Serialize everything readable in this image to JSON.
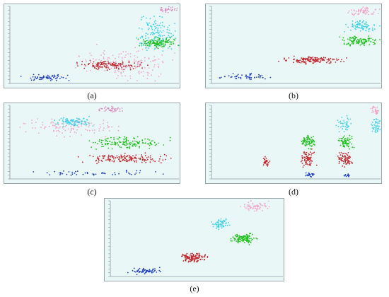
{
  "captions": {
    "a": "(a)",
    "b": "(b)",
    "c": "(c)",
    "d": "(d)",
    "e": "(e)"
  },
  "colors": {
    "background": "#e9f7f7",
    "axis": "#8a99a3",
    "blue": "#1f3fbf",
    "red": "#c0262c",
    "green": "#22c21f",
    "cyan": "#3fd2e8",
    "pink": "#f2a4c8",
    "plum": "#d98cc0"
  },
  "chart_data": [
    {
      "id": "a",
      "type": "scatter",
      "grid": false,
      "xlim": [
        0,
        1
      ],
      "ylim": [
        0,
        1
      ],
      "clusters": [
        {
          "color": "blue",
          "x": [
            0.02,
            0.4
          ],
          "y": [
            0.03,
            0.12
          ],
          "n": 60
        },
        {
          "color": "red",
          "x": [
            0.38,
            0.8
          ],
          "y": [
            0.18,
            0.3
          ],
          "n": 150
        },
        {
          "color": "pink",
          "x": [
            0.4,
            0.98
          ],
          "y": [
            0.0,
            0.5
          ],
          "n": 160
        },
        {
          "color": "cyan",
          "x": [
            0.72,
            1.0
          ],
          "y": [
            0.35,
            0.9
          ],
          "n": 140
        },
        {
          "color": "green",
          "x": [
            0.76,
            1.0
          ],
          "y": [
            0.45,
            0.6
          ],
          "n": 120
        },
        {
          "color": "plum",
          "x": [
            0.88,
            1.0
          ],
          "y": [
            0.92,
            1.0
          ],
          "n": 30
        }
      ]
    },
    {
      "id": "b",
      "type": "scatter",
      "grid": false,
      "xlim": [
        0,
        1
      ],
      "ylim": [
        0,
        1
      ],
      "clusters": [
        {
          "color": "blue",
          "x": [
            0.03,
            0.35
          ],
          "y": [
            0.04,
            0.14
          ],
          "n": 50
        },
        {
          "color": "red",
          "x": [
            0.4,
            0.8
          ],
          "y": [
            0.25,
            0.36
          ],
          "n": 140
        },
        {
          "color": "green",
          "x": [
            0.76,
            1.0
          ],
          "y": [
            0.48,
            0.62
          ],
          "n": 110
        },
        {
          "color": "cyan",
          "x": [
            0.78,
            1.0
          ],
          "y": [
            0.66,
            0.82
          ],
          "n": 80
        },
        {
          "color": "pink",
          "x": [
            0.8,
            1.0
          ],
          "y": [
            0.88,
            1.0
          ],
          "n": 60
        }
      ]
    },
    {
      "id": "c",
      "type": "scatter",
      "grid": false,
      "xlim": [
        0,
        1
      ],
      "ylim": [
        0,
        1
      ],
      "clusters": [
        {
          "color": "blue",
          "x": [
            0.05,
            0.9
          ],
          "y": [
            0.04,
            0.14
          ],
          "n": 50
        },
        {
          "color": "red",
          "x": [
            0.4,
            0.95
          ],
          "y": [
            0.2,
            0.35
          ],
          "n": 150
        },
        {
          "color": "green",
          "x": [
            0.45,
            0.95
          ],
          "y": [
            0.4,
            0.58
          ],
          "n": 140
        },
        {
          "color": "pink",
          "x": [
            0.05,
            0.7
          ],
          "y": [
            0.55,
            0.85
          ],
          "n": 110
        },
        {
          "color": "cyan",
          "x": [
            0.25,
            0.5
          ],
          "y": [
            0.7,
            0.85
          ],
          "n": 90
        },
        {
          "color": "plum",
          "x": [
            0.5,
            0.7
          ],
          "y": [
            0.9,
            1.0
          ],
          "n": 40
        }
      ]
    },
    {
      "id": "d",
      "type": "scatter",
      "grid": false,
      "xlim": [
        0,
        1
      ],
      "ylim": [
        0,
        1
      ],
      "clusters": [
        {
          "color": "blue",
          "x": [
            0.55,
            0.62
          ],
          "y": [
            0.02,
            0.1
          ],
          "n": 25
        },
        {
          "color": "blue",
          "x": [
            0.78,
            0.82
          ],
          "y": [
            0.02,
            0.08
          ],
          "n": 15
        },
        {
          "color": "red",
          "x": [
            0.3,
            0.35
          ],
          "y": [
            0.15,
            0.3
          ],
          "n": 30
        },
        {
          "color": "red",
          "x": [
            0.52,
            0.62
          ],
          "y": [
            0.15,
            0.4
          ],
          "n": 70
        },
        {
          "color": "red",
          "x": [
            0.74,
            0.84
          ],
          "y": [
            0.15,
            0.4
          ],
          "n": 70
        },
        {
          "color": "green",
          "x": [
            0.52,
            0.62
          ],
          "y": [
            0.4,
            0.62
          ],
          "n": 80
        },
        {
          "color": "green",
          "x": [
            0.74,
            0.84
          ],
          "y": [
            0.4,
            0.62
          ],
          "n": 70
        },
        {
          "color": "cyan",
          "x": [
            0.74,
            0.84
          ],
          "y": [
            0.62,
            0.85
          ],
          "n": 40
        },
        {
          "color": "cyan",
          "x": [
            0.94,
            1.0
          ],
          "y": [
            0.6,
            0.85
          ],
          "n": 40
        },
        {
          "color": "pink",
          "x": [
            0.94,
            1.0
          ],
          "y": [
            0.85,
            1.0
          ],
          "n": 30
        }
      ]
    },
    {
      "id": "e",
      "type": "scatter",
      "grid": false,
      "xlim": [
        0,
        1
      ],
      "ylim": [
        0,
        1
      ],
      "clusters": [
        {
          "color": "blue",
          "x": [
            0.1,
            0.3
          ],
          "y": [
            0.03,
            0.12
          ],
          "n": 60
        },
        {
          "color": "red",
          "x": [
            0.4,
            0.56
          ],
          "y": [
            0.18,
            0.32
          ],
          "n": 120
        },
        {
          "color": "green",
          "x": [
            0.7,
            0.86
          ],
          "y": [
            0.42,
            0.58
          ],
          "n": 120
        },
        {
          "color": "cyan",
          "x": [
            0.58,
            0.7
          ],
          "y": [
            0.6,
            0.78
          ],
          "n": 60
        },
        {
          "color": "pink",
          "x": [
            0.75,
            0.95
          ],
          "y": [
            0.85,
            1.0
          ],
          "n": 60
        }
      ]
    }
  ]
}
